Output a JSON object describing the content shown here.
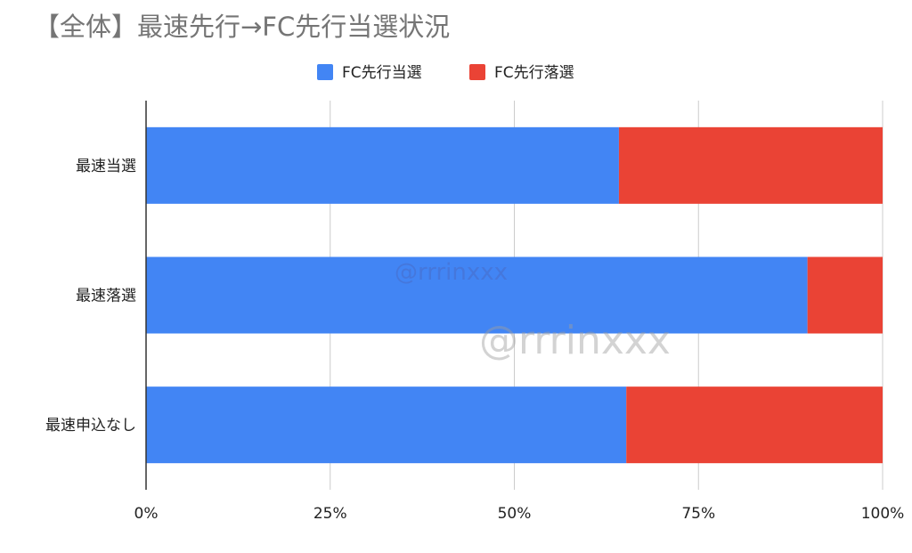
{
  "chart_data": {
    "type": "bar",
    "orientation": "horizontal",
    "stacked": "percent",
    "title": "【全体】最速先行→FC先行当選状況",
    "categories": [
      "最速当選",
      "最速落選",
      "最速申込なし"
    ],
    "series": [
      {
        "name": "FC先行当選",
        "color": "#4285f4",
        "values": [
          64.2,
          89.8,
          65.2
        ]
      },
      {
        "name": "FC先行落選",
        "color": "#ea4335",
        "values": [
          35.8,
          10.2,
          34.8
        ]
      }
    ],
    "xlim": [
      0,
      100
    ],
    "x_ticks": [
      "0%",
      "25%",
      "50%",
      "75%",
      "100%"
    ],
    "grid": true,
    "legend_position": "top",
    "watermarks": [
      "@rrrinxxx",
      "@rrrinxxx"
    ]
  }
}
